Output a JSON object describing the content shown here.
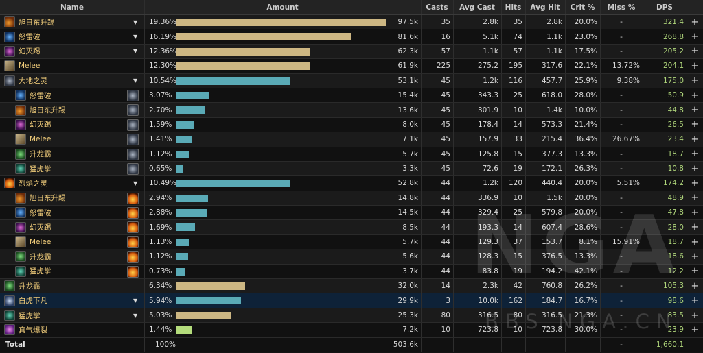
{
  "headers": {
    "name": "Name",
    "amount": "Amount",
    "casts": "Casts",
    "avg_cast": "Avg Cast",
    "hits": "Hits",
    "avg_hit": "Avg Hit",
    "crit": "Crit %",
    "miss": "Miss %",
    "dps": "DPS"
  },
  "colors": {
    "bar_tan": "#cdb783",
    "bar_teal": "#5aaab6",
    "bar_green": "#b4dc7c",
    "name": "#f0cc7a",
    "dps": "#aed47a",
    "selected_row": "#0e2238"
  },
  "rows": [
    {
      "indent": 0,
      "icon": "sunrise-kick-icon",
      "sub_icon": "",
      "expand": true,
      "name": "旭日东升踢",
      "pct": "19.36%",
      "frac": 1.0,
      "bar": "bar_tan",
      "amount": "97.5k",
      "casts": "35",
      "avg_cast": "2.8k",
      "hits": "35",
      "avg_hit": "2.8k",
      "crit": "20.0%",
      "miss": "-",
      "dps": "321.4"
    },
    {
      "indent": 0,
      "icon": "fists-of-fury-icon",
      "sub_icon": "",
      "expand": true,
      "name": "怒雷破",
      "pct": "16.19%",
      "frac": 0.836,
      "bar": "bar_tan",
      "amount": "81.6k",
      "casts": "16",
      "avg_cast": "5.1k",
      "hits": "74",
      "avg_hit": "1.1k",
      "crit": "23.0%",
      "miss": "-",
      "dps": "268.8"
    },
    {
      "indent": 0,
      "icon": "rising-kill-icon",
      "sub_icon": "",
      "expand": true,
      "name": "幻灭踢",
      "pct": "12.36%",
      "frac": 0.638,
      "bar": "bar_tan",
      "amount": "62.3k",
      "casts": "57",
      "avg_cast": "1.1k",
      "hits": "57",
      "avg_hit": "1.1k",
      "crit": "17.5%",
      "miss": "-",
      "dps": "205.2"
    },
    {
      "indent": 0,
      "icon": "melee-icon",
      "sub_icon": "",
      "expand": false,
      "name": "Melee",
      "pct": "12.30%",
      "frac": 0.635,
      "bar": "bar_tan",
      "amount": "61.9k",
      "casts": "225",
      "avg_cast": "275.2",
      "hits": "195",
      "avg_hit": "317.6",
      "crit": "22.1%",
      "miss": "13.72%",
      "dps": "204.1"
    },
    {
      "indent": 0,
      "icon": "earth-spirit-icon",
      "sub_icon": "",
      "expand": true,
      "name": "大地之灵",
      "pct": "10.54%",
      "frac": 0.544,
      "bar": "bar_teal",
      "amount": "53.1k",
      "casts": "45",
      "avg_cast": "1.2k",
      "hits": "116",
      "avg_hit": "457.7",
      "crit": "25.9%",
      "miss": "9.38%",
      "dps": "175.0"
    },
    {
      "indent": 1,
      "icon": "fists-of-fury-icon",
      "sub_icon": "earth-spirit-icon",
      "expand": false,
      "name": "怒雷破",
      "pct": "3.07%",
      "frac": 0.158,
      "bar": "bar_teal",
      "amount": "15.4k",
      "casts": "45",
      "avg_cast": "343.3",
      "hits": "25",
      "avg_hit": "618.0",
      "crit": "28.0%",
      "miss": "-",
      "dps": "50.9"
    },
    {
      "indent": 1,
      "icon": "sunrise-kick-icon",
      "sub_icon": "earth-spirit-icon",
      "expand": false,
      "name": "旭日东升踢",
      "pct": "2.70%",
      "frac": 0.139,
      "bar": "bar_teal",
      "amount": "13.6k",
      "casts": "45",
      "avg_cast": "301.9",
      "hits": "10",
      "avg_hit": "1.4k",
      "crit": "10.0%",
      "miss": "-",
      "dps": "44.8"
    },
    {
      "indent": 1,
      "icon": "rising-kill-icon",
      "sub_icon": "earth-spirit-icon",
      "expand": false,
      "name": "幻灭踢",
      "pct": "1.59%",
      "frac": 0.082,
      "bar": "bar_teal",
      "amount": "8.0k",
      "casts": "45",
      "avg_cast": "178.4",
      "hits": "14",
      "avg_hit": "573.3",
      "crit": "21.4%",
      "miss": "-",
      "dps": "26.5"
    },
    {
      "indent": 1,
      "icon": "melee-icon",
      "sub_icon": "earth-spirit-icon",
      "expand": false,
      "name": "Melee",
      "pct": "1.41%",
      "frac": 0.073,
      "bar": "bar_teal",
      "amount": "7.1k",
      "casts": "45",
      "avg_cast": "157.9",
      "hits": "33",
      "avg_hit": "215.4",
      "crit": "36.4%",
      "miss": "26.67%",
      "dps": "23.4"
    },
    {
      "indent": 1,
      "icon": "rising-dragon-icon",
      "sub_icon": "earth-spirit-icon",
      "expand": false,
      "name": "升龙霸",
      "pct": "1.12%",
      "frac": 0.058,
      "bar": "bar_teal",
      "amount": "5.7k",
      "casts": "45",
      "avg_cast": "125.8",
      "hits": "15",
      "avg_hit": "377.3",
      "crit": "13.3%",
      "miss": "-",
      "dps": "18.7"
    },
    {
      "indent": 1,
      "icon": "tiger-palm-icon",
      "sub_icon": "earth-spirit-icon",
      "expand": false,
      "name": "猛虎掌",
      "pct": "0.65%",
      "frac": 0.034,
      "bar": "bar_teal",
      "amount": "3.3k",
      "casts": "45",
      "avg_cast": "72.6",
      "hits": "19",
      "avg_hit": "172.1",
      "crit": "26.3%",
      "miss": "-",
      "dps": "10.8"
    },
    {
      "indent": 0,
      "icon": "fire-spirit-icon",
      "sub_icon": "",
      "expand": true,
      "name": "烈焰之灵",
      "pct": "10.49%",
      "frac": 0.542,
      "bar": "bar_teal",
      "amount": "52.8k",
      "casts": "44",
      "avg_cast": "1.2k",
      "hits": "120",
      "avg_hit": "440.4",
      "crit": "20.0%",
      "miss": "5.51%",
      "dps": "174.2"
    },
    {
      "indent": 1,
      "icon": "sunrise-kick-icon",
      "sub_icon": "fire-spirit-icon",
      "expand": false,
      "name": "旭日东升踢",
      "pct": "2.94%",
      "frac": 0.152,
      "bar": "bar_teal",
      "amount": "14.8k",
      "casts": "44",
      "avg_cast": "336.9",
      "hits": "10",
      "avg_hit": "1.5k",
      "crit": "20.0%",
      "miss": "-",
      "dps": "48.9"
    },
    {
      "indent": 1,
      "icon": "fists-of-fury-icon",
      "sub_icon": "fire-spirit-icon",
      "expand": false,
      "name": "怒雷破",
      "pct": "2.88%",
      "frac": 0.149,
      "bar": "bar_teal",
      "amount": "14.5k",
      "casts": "44",
      "avg_cast": "329.4",
      "hits": "25",
      "avg_hit": "579.8",
      "crit": "20.0%",
      "miss": "-",
      "dps": "47.8"
    },
    {
      "indent": 1,
      "icon": "rising-kill-icon",
      "sub_icon": "fire-spirit-icon",
      "expand": false,
      "name": "幻灭踢",
      "pct": "1.69%",
      "frac": 0.087,
      "bar": "bar_teal",
      "amount": "8.5k",
      "casts": "44",
      "avg_cast": "193.3",
      "hits": "14",
      "avg_hit": "607.4",
      "crit": "28.6%",
      "miss": "-",
      "dps": "28.0"
    },
    {
      "indent": 1,
      "icon": "melee-icon",
      "sub_icon": "fire-spirit-icon",
      "expand": false,
      "name": "Melee",
      "pct": "1.13%",
      "frac": 0.058,
      "bar": "bar_teal",
      "amount": "5.7k",
      "casts": "44",
      "avg_cast": "129.3",
      "hits": "37",
      "avg_hit": "153.7",
      "crit": "8.1%",
      "miss": "15.91%",
      "dps": "18.7"
    },
    {
      "indent": 1,
      "icon": "rising-dragon-icon",
      "sub_icon": "fire-spirit-icon",
      "expand": false,
      "name": "升龙霸",
      "pct": "1.12%",
      "frac": 0.057,
      "bar": "bar_teal",
      "amount": "5.6k",
      "casts": "44",
      "avg_cast": "128.3",
      "hits": "15",
      "avg_hit": "376.5",
      "crit": "13.3%",
      "miss": "-",
      "dps": "18.6"
    },
    {
      "indent": 1,
      "icon": "tiger-palm-icon",
      "sub_icon": "fire-spirit-icon",
      "expand": false,
      "name": "猛虎掌",
      "pct": "0.73%",
      "frac": 0.038,
      "bar": "bar_teal",
      "amount": "3.7k",
      "casts": "44",
      "avg_cast": "83.8",
      "hits": "19",
      "avg_hit": "194.2",
      "crit": "42.1%",
      "miss": "-",
      "dps": "12.2"
    },
    {
      "indent": 0,
      "icon": "rising-dragon-icon",
      "sub_icon": "",
      "expand": false,
      "name": "升龙霸",
      "pct": "6.34%",
      "frac": 0.327,
      "bar": "bar_tan",
      "amount": "32.0k",
      "casts": "14",
      "avg_cast": "2.3k",
      "hits": "42",
      "avg_hit": "760.8",
      "crit": "26.2%",
      "miss": "-",
      "dps": "105.3"
    },
    {
      "indent": 0,
      "icon": "white-tiger-icon",
      "sub_icon": "",
      "expand": true,
      "selected": true,
      "name": "白虎下凡",
      "pct": "5.94%",
      "frac": 0.307,
      "bar": "bar_teal",
      "amount": "29.9k",
      "casts": "3",
      "avg_cast": "10.0k",
      "hits": "162",
      "avg_hit": "184.7",
      "crit": "16.7%",
      "miss": "-",
      "dps": "98.6"
    },
    {
      "indent": 0,
      "icon": "tiger-palm-icon",
      "sub_icon": "",
      "expand": true,
      "name": "猛虎掌",
      "pct": "5.03%",
      "frac": 0.26,
      "bar": "bar_tan",
      "amount": "25.3k",
      "casts": "80",
      "avg_cast": "316.5",
      "hits": "80",
      "avg_hit": "316.5",
      "crit": "21.3%",
      "miss": "-",
      "dps": "83.5"
    },
    {
      "indent": 0,
      "icon": "chi-burst-icon",
      "sub_icon": "",
      "expand": false,
      "name": "真气爆裂",
      "pct": "1.44%",
      "frac": 0.074,
      "bar": "bar_green",
      "amount": "7.2k",
      "casts": "10",
      "avg_cast": "723.8",
      "hits": "10",
      "avg_hit": "723.8",
      "crit": "30.0%",
      "miss": "-",
      "dps": "23.9"
    }
  ],
  "total": {
    "name": "Total",
    "pct": "100%",
    "amount": "503.6k",
    "casts": "-",
    "dps": "1,660.1"
  },
  "expand_glyph": "▼",
  "add_glyph": "+",
  "watermark": {
    "logo": "NGA",
    "url": "BBS.NGA.CN"
  }
}
